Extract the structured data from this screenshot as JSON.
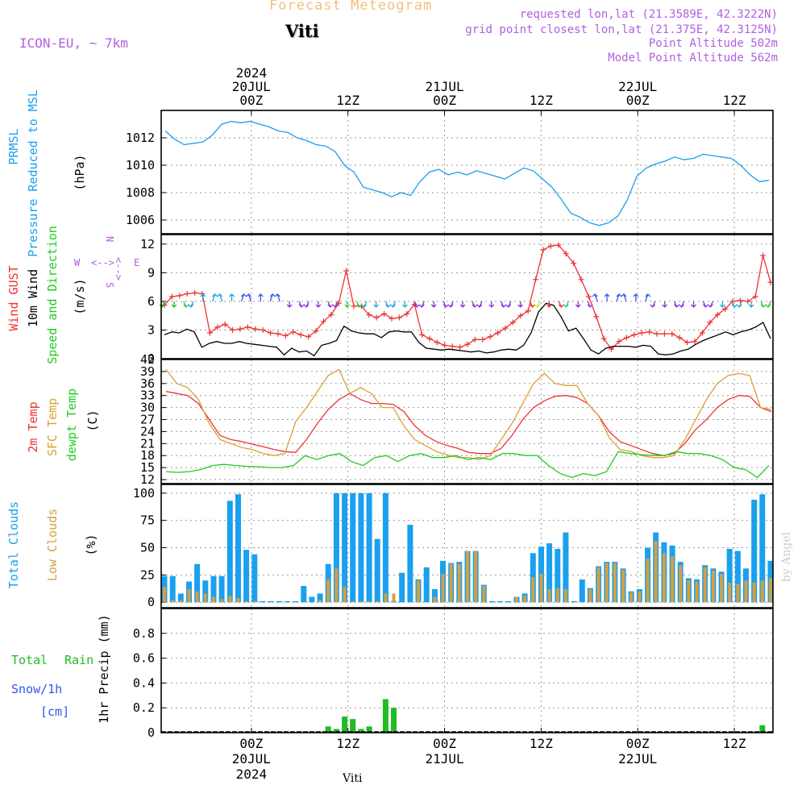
{
  "header": {
    "app_title": "Forecast Meteogram",
    "location": "Viti",
    "model": "ICON-EU, ~ 7km",
    "requested": "requested lon,lat (21.3589E, 42.3222N)",
    "grid_point": "grid point closest lon,lat (21.375E, 42.3125N)",
    "point_altitude": "Point Altitude 502m",
    "model_altitude": "Model Point Altitude 562m",
    "footer_location": "Viti",
    "credit": "by Angel"
  },
  "colors": {
    "pressure": "#1aa0ee",
    "gust": "#ee3333",
    "wind": "#000000",
    "t2m": "#ee3333",
    "sfc": "#dda030",
    "dewpt": "#22cc22",
    "total_cloud": "#1aa0ee",
    "low_cloud": "#d4a040",
    "rain": "#22bb22",
    "snow": "#3355ee",
    "label_purple": "#b060e0",
    "title_orange": "#f0c080"
  },
  "chart_data": [
    {
      "id": "pressure",
      "type": "line",
      "title": "",
      "ylabel_lines": [
        "PRMSL",
        "Pressure Reduced to MSL"
      ],
      "yunit": "(hPa)",
      "ylim": [
        1005,
        1014
      ],
      "yticks": [
        "1006",
        "1008",
        "1010",
        "1012"
      ],
      "ytick_values": [
        1006,
        1008,
        1010,
        1012
      ],
      "grid": true,
      "series": [
        {
          "name": "PRMSL",
          "x": [
            0,
            1,
            2,
            3,
            4,
            5,
            6,
            7,
            8,
            9,
            10,
            11,
            12,
            13,
            14,
            15,
            16,
            17,
            18,
            19,
            20,
            21,
            22,
            23,
            24,
            25,
            26,
            27,
            28,
            29,
            30,
            31,
            32,
            33,
            34,
            35,
            36,
            37,
            38,
            39,
            40,
            41,
            42,
            43,
            44,
            45,
            46,
            47,
            48,
            49,
            50,
            51,
            52,
            53,
            54,
            55,
            56,
            57,
            58,
            59,
            60,
            61,
            62,
            63,
            64
          ],
          "values": [
            1012.5,
            1011.9,
            1011.5,
            1011.6,
            1011.7,
            1012.2,
            1013.0,
            1013.2,
            1013.1,
            1013.2,
            1013.0,
            1012.8,
            1012.5,
            1012.4,
            1012.0,
            1011.8,
            1011.5,
            1011.4,
            1011.0,
            1010.0,
            1009.5,
            1008.4,
            1008.2,
            1008.0,
            1007.7,
            1008.0,
            1007.8,
            1008.8,
            1009.5,
            1009.7,
            1009.3,
            1009.5,
            1009.3,
            1009.6,
            1009.4,
            1009.2,
            1009.0,
            1009.4,
            1009.8,
            1009.6,
            1009.0,
            1008.4,
            1007.5,
            1006.5,
            1006.2,
            1005.8,
            1005.6,
            1005.8,
            1006.3,
            1007.5,
            1009.2,
            1009.8,
            1010.1,
            1010.3,
            1010.6,
            1010.4,
            1010.5,
            1010.8,
            1010.7,
            1010.6,
            1010.5,
            1010.0,
            1009.3,
            1008.8,
            1008.9
          ]
        }
      ]
    },
    {
      "id": "wind",
      "type": "line",
      "ylabel_lines": [
        "Wind GUST",
        "10m Wind",
        "Speed and Direction"
      ],
      "yunit": "(m/s)",
      "ylim": [
        0,
        13
      ],
      "yticks": [
        "0",
        "3",
        "6",
        "9",
        "12"
      ],
      "ytick_values": [
        0,
        3,
        6,
        9,
        12
      ],
      "compass": {
        "n": "N",
        "s": "S",
        "e": "E",
        "w": "W",
        "arrow": "<-->"
      },
      "grid": true,
      "series": [
        {
          "name": "Wind GUST",
          "values": [
            5.6,
            6.5,
            6.6,
            6.8,
            6.9,
            6.8,
            2.7,
            3.3,
            3.6,
            3.0,
            3.1,
            3.3,
            3.1,
            3.0,
            2.7,
            2.6,
            2.4,
            2.8,
            2.5,
            2.3,
            2.9,
            3.9,
            4.6,
            5.8,
            9.2,
            5.5,
            5.5,
            4.6,
            4.3,
            4.7,
            4.2,
            4.3,
            4.7,
            5.7,
            2.5,
            2.1,
            1.7,
            1.4,
            1.3,
            1.2,
            1.5,
            2.0,
            2.0,
            2.3,
            2.7,
            3.2,
            3.8,
            4.5,
            5.0,
            8.3,
            11.4,
            11.8,
            11.9,
            11.0,
            10.0,
            8.3,
            6.5,
            4.4,
            2.1,
            1.0,
            1.8,
            2.2,
            2.5,
            2.7,
            2.8,
            2.6,
            2.6,
            2.6,
            2.2,
            1.7,
            1.8,
            2.7,
            3.8,
            4.6,
            5.2,
            6.0,
            6.1,
            6.0,
            6.5,
            10.8,
            8.0
          ]
        },
        {
          "name": "10m Wind",
          "values": [
            2.5,
            2.8,
            2.7,
            3.1,
            2.8,
            1.2,
            1.6,
            1.8,
            1.6,
            1.6,
            1.8,
            1.6,
            1.5,
            1.4,
            1.3,
            1.2,
            0.4,
            1.1,
            0.7,
            0.8,
            0.3,
            1.4,
            1.6,
            1.9,
            3.4,
            2.9,
            2.7,
            2.6,
            2.6,
            2.2,
            2.8,
            2.9,
            2.8,
            2.8,
            1.7,
            1.1,
            1.0,
            0.9,
            1.0,
            0.9,
            0.8,
            0.7,
            0.8,
            0.6,
            0.7,
            0.9,
            1.0,
            0.9,
            1.4,
            2.7,
            4.9,
            5.8,
            5.6,
            4.4,
            2.9,
            3.2,
            2.1,
            0.9,
            0.5,
            1.1,
            1.3,
            1.3,
            1.3,
            1.2,
            1.4,
            1.3,
            0.5,
            0.4,
            0.5,
            0.8,
            1.0,
            1.5,
            1.9,
            2.2,
            2.5,
            2.8,
            2.5,
            2.8,
            3.0,
            3.3,
            3.8,
            2.1
          ]
        }
      ]
    },
    {
      "id": "temperature",
      "type": "line",
      "ylabel_lines": [
        "2m Temp",
        "SFC Temp",
        "dewpt Temp"
      ],
      "yunit": "(C)",
      "ylim": [
        11,
        42
      ],
      "yticks": [
        "12",
        "15",
        "18",
        "21",
        "24",
        "27",
        "30",
        "33",
        "36",
        "39",
        "42"
      ],
      "ytick_values": [
        12,
        15,
        18,
        21,
        24,
        27,
        30,
        33,
        36,
        39,
        42
      ],
      "grid": true,
      "series": [
        {
          "name": "2m Temp",
          "values": [
            34.0,
            33.5,
            33.0,
            31.0,
            27.0,
            23.0,
            22.0,
            21.5,
            20.8,
            20.2,
            19.5,
            19.0,
            18.8,
            22.0,
            26.0,
            29.5,
            32.0,
            33.5,
            32.0,
            31.0,
            31.0,
            30.8,
            29.0,
            25.5,
            23.0,
            21.5,
            20.5,
            19.8,
            18.8,
            18.5,
            18.5,
            19.8,
            23.0,
            27.0,
            30.0,
            31.7,
            32.8,
            33.0,
            32.5,
            31.0,
            28.0,
            24.0,
            21.5,
            20.5,
            19.5,
            18.5,
            18.0,
            18.5,
            21.0,
            24.5,
            27.0,
            30.0,
            32.0,
            33.0,
            32.8,
            30.0,
            29.0
          ]
        },
        {
          "name": "SFC Temp",
          "values": [
            39.5,
            36.0,
            35.0,
            32.0,
            26.0,
            22.0,
            21.0,
            20.0,
            19.5,
            18.5,
            18.0,
            18.5,
            26.5,
            30.0,
            34.0,
            38.0,
            39.5,
            33.5,
            35.0,
            33.5,
            30.0,
            30.0,
            25.5,
            22.0,
            20.5,
            19.0,
            18.2,
            17.5,
            17.5,
            17.0,
            18.0,
            22.0,
            26.0,
            31.0,
            36.0,
            38.5,
            36.0,
            35.5,
            35.5,
            31.0,
            28.0,
            22.5,
            19.5,
            19.0,
            18.0,
            17.5,
            17.5,
            18.0,
            22.0,
            27.0,
            32.0,
            36.0,
            38.0,
            38.5,
            38.0,
            30.0,
            29.5
          ]
        },
        {
          "name": "dewpt Temp",
          "values": [
            14.0,
            13.8,
            14.0,
            14.5,
            15.5,
            15.8,
            15.5,
            15.3,
            15.2,
            15.0,
            15.0,
            15.5,
            18.0,
            17.0,
            18.0,
            18.5,
            16.5,
            15.5,
            17.5,
            18.0,
            16.5,
            18.0,
            18.5,
            17.5,
            17.5,
            18.0,
            17.0,
            17.5,
            17.0,
            18.5,
            18.5,
            18.0,
            18.0,
            15.5,
            13.5,
            12.5,
            13.5,
            13.0,
            14.0,
            19.0,
            18.5,
            18.2,
            18.0,
            18.0,
            19.0,
            18.5,
            18.5,
            18.0,
            17.0,
            15.0,
            14.5,
            12.5,
            15.5
          ]
        }
      ]
    },
    {
      "id": "clouds",
      "type": "bar",
      "ylabel_lines": [
        "Total Clouds",
        "Low Clouds"
      ],
      "yunit": "(%)",
      "ylim": [
        -5,
        108
      ],
      "yticks": [
        "0",
        "25",
        "50",
        "75",
        "100"
      ],
      "ytick_values": [
        0,
        25,
        50,
        75,
        100
      ],
      "grid": true,
      "series": [
        {
          "name": "Total Clouds",
          "values": [
            24,
            24,
            8,
            19,
            35,
            20,
            24,
            24,
            93,
            99,
            48,
            44,
            1,
            1,
            1,
            1,
            1,
            15,
            5,
            8,
            35,
            100,
            100,
            100,
            100,
            100,
            58,
            100,
            1,
            27,
            71,
            21,
            32,
            12,
            38,
            36,
            37,
            47,
            47,
            16,
            1,
            1,
            1,
            5,
            8,
            45,
            51,
            54,
            49,
            64,
            1,
            21,
            13,
            33,
            37,
            37,
            31,
            10,
            12,
            50,
            64,
            55,
            52,
            37,
            22,
            21,
            34,
            31,
            28,
            49,
            47,
            31,
            94,
            99,
            38
          ]
        },
        {
          "name": "Low Clouds",
          "values": [
            14,
            2,
            2,
            12,
            10,
            8,
            5,
            3,
            6,
            4,
            1,
            1,
            0,
            0,
            0,
            0,
            0,
            0,
            0,
            2,
            21,
            31,
            14,
            1,
            1,
            1,
            1,
            8,
            8,
            0,
            0,
            20,
            0,
            5,
            26,
            35,
            35,
            47,
            47,
            15,
            0,
            0,
            0,
            5,
            6,
            23,
            26,
            12,
            13,
            12,
            0,
            0,
            12,
            32,
            36,
            36,
            30,
            9,
            10,
            40,
            56,
            45,
            42,
            34,
            20,
            19,
            32,
            29,
            26,
            18,
            17,
            20,
            18,
            20,
            22
          ]
        }
      ]
    },
    {
      "id": "precip",
      "type": "bar",
      "ylabel": "1hr Precip (mm)",
      "ylim": [
        0,
        1.0
      ],
      "yticks": [
        "0",
        "0.2",
        "0.4",
        "0.6",
        "0.8"
      ],
      "ytick_values": [
        0,
        0.2,
        0.4,
        0.6,
        0.8
      ],
      "legend": {
        "total": "Total",
        "rain": "Rain",
        "snow": "Snow/1h",
        "unit": "[cm]"
      },
      "grid": true,
      "series": [
        {
          "name": "Rain",
          "values": [
            0,
            0,
            0,
            0,
            0,
            0,
            0,
            0,
            0,
            0,
            0,
            0,
            0,
            0,
            0,
            0,
            0,
            0,
            0,
            0,
            0.05,
            0.03,
            0.13,
            0.11,
            0.03,
            0.05,
            0,
            0.27,
            0.2,
            0,
            0,
            0,
            0,
            0,
            0,
            0,
            0,
            0,
            0,
            0,
            0,
            0,
            0,
            0,
            0,
            0,
            0,
            0,
            0,
            0,
            0,
            0,
            0,
            0,
            0,
            0,
            0,
            0,
            0,
            0,
            0,
            0,
            0,
            0,
            0,
            0,
            0,
            0,
            0,
            0,
            0,
            0,
            0,
            0.06,
            0
          ]
        }
      ]
    }
  ],
  "time_axis": {
    "top_labels": [
      {
        "hour": 0,
        "lines": [
          "2024",
          "20JUL",
          "00Z"
        ]
      },
      {
        "hour": 12,
        "lines": [
          "12Z"
        ]
      },
      {
        "hour": 24,
        "lines": [
          "21JUL",
          "00Z"
        ]
      },
      {
        "hour": 36,
        "lines": [
          "12Z"
        ]
      },
      {
        "hour": 48,
        "lines": [
          "22JUL",
          "00Z"
        ]
      },
      {
        "hour": 60,
        "lines": [
          "12Z"
        ]
      }
    ],
    "bottom_labels": [
      {
        "hour": 0,
        "lines": [
          "00Z",
          "20JUL",
          "2024"
        ]
      },
      {
        "hour": 12,
        "lines": [
          "12Z"
        ]
      },
      {
        "hour": 24,
        "lines": [
          "00Z",
          "21JUL"
        ]
      },
      {
        "hour": 36,
        "lines": [
          "12Z"
        ]
      },
      {
        "hour": 48,
        "lines": [
          "00Z",
          "22JUL"
        ]
      },
      {
        "hour": 60,
        "lines": [
          "12Z"
        ]
      }
    ],
    "range_hours": [
      -11.2,
      64.8
    ]
  }
}
